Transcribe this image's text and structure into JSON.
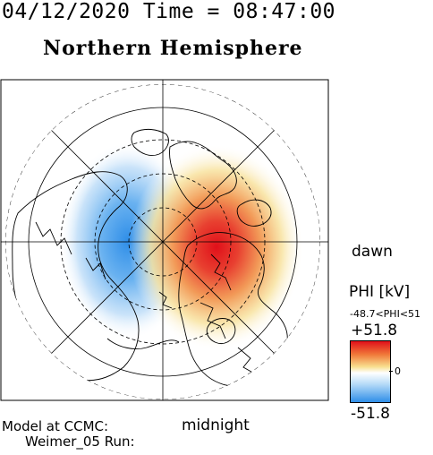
{
  "header": {
    "datetime": "04/12/2020 Time = 08:47:00",
    "title": "Northern Hemisphere"
  },
  "map": {
    "label_dawn": "dawn",
    "label_midnight": "midnight",
    "colors": {
      "positive": "#e0101a",
      "negative": "#2f8ee8",
      "coastline": "#000000"
    }
  },
  "colorbar": {
    "title": "PHI [kV]",
    "range_text": "-48.7<PHI<51",
    "max_label": "+51.8",
    "zero_label": "0",
    "min_label": "-51.8"
  },
  "footer": {
    "model_label": "Model at CCMC:",
    "run_label": "Weimer_05 Run:"
  }
}
